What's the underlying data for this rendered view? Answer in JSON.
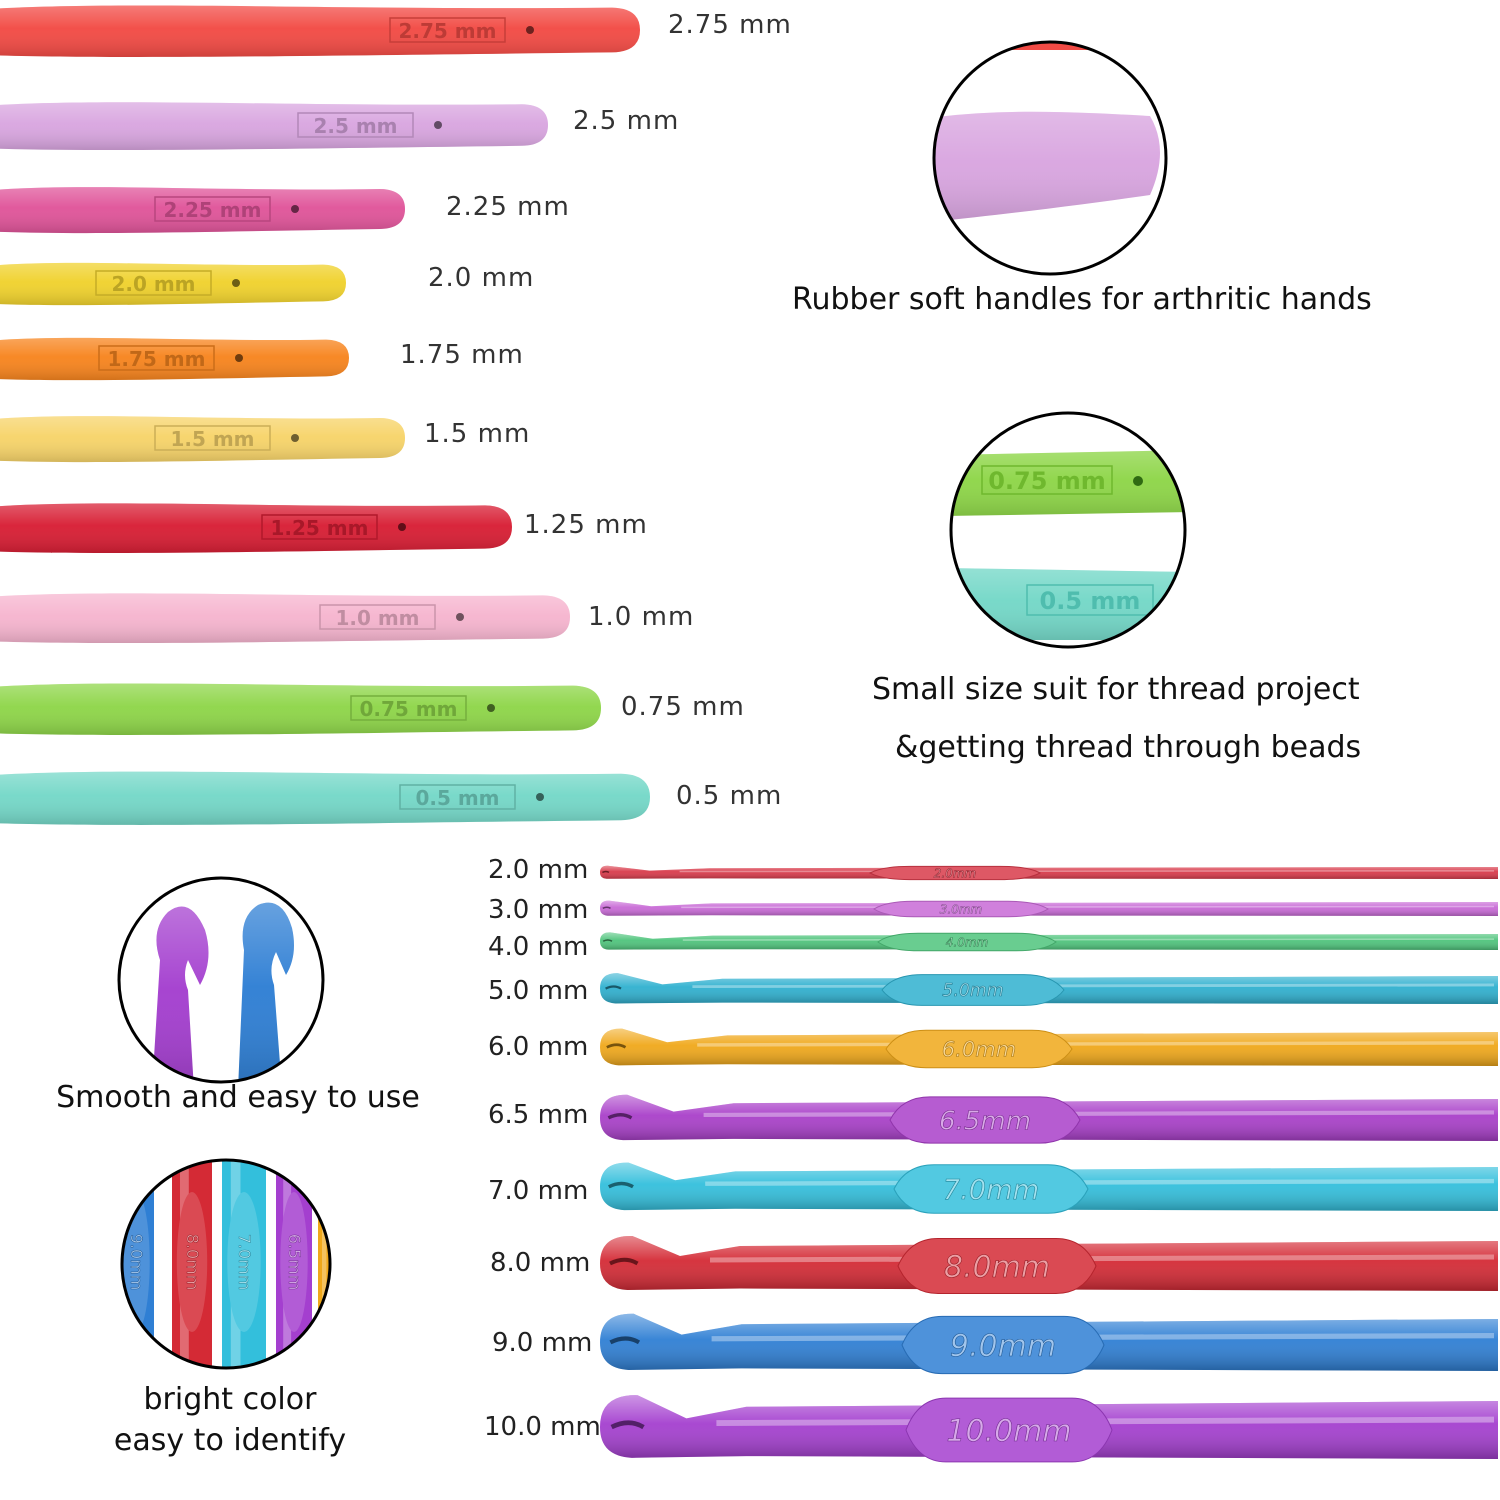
{
  "rubber_hooks": [
    {
      "size": "2.75 mm",
      "label": "2.75 mm",
      "color": "#f24b45"
    },
    {
      "size": "2.5 mm",
      "label": "2.5 mm",
      "color": "#d9a6e0"
    },
    {
      "size": "2.25 mm",
      "label": "2.25 mm",
      "color": "#e0559a"
    },
    {
      "size": "2.0 mm",
      "label": "2.0 mm",
      "color": "#f0d22e"
    },
    {
      "size": "1.75 mm",
      "label": "1.75 mm",
      "color": "#f7851f"
    },
    {
      "size": "1.5 mm",
      "label": "1.5 mm",
      "color": "#f7d46a"
    },
    {
      "size": "1.25 mm",
      "label": "1.25 mm",
      "color": "#d81f35"
    },
    {
      "size": "1.0 mm",
      "label": "1.0 mm",
      "color": "#f6b5cf"
    },
    {
      "size": "0.75 mm",
      "label": "0.75 mm",
      "color": "#8fd64a"
    },
    {
      "size": "0.5 mm",
      "label": "0.5 mm",
      "color": "#75d8c8"
    }
  ],
  "aluminum_hooks": [
    {
      "size": "2.0mm",
      "label": "2.0 mm",
      "color": "#d83a4a"
    },
    {
      "size": "3.0mm",
      "label": "3.0 mm",
      "color": "#c86ad6"
    },
    {
      "size": "4.0mm",
      "label": "4.0 mm",
      "color": "#4fc47c"
    },
    {
      "size": "5.0mm",
      "label": "5.0 mm",
      "color": "#2fb0cf"
    },
    {
      "size": "6.0mm",
      "label": "6.0 mm",
      "color": "#f0a81a"
    },
    {
      "size": "6.5mm",
      "label": "6.5 mm",
      "color": "#a93fc9"
    },
    {
      "size": "7.0mm",
      "label": "7.0 mm",
      "color": "#33bfdc"
    },
    {
      "size": "8.0mm",
      "label": "8.0 mm",
      "color": "#d42a35"
    },
    {
      "size": "9.0mm",
      "label": "9.0 mm",
      "color": "#2f7fd4"
    },
    {
      "size": "10.0mm",
      "label": "10.0 mm",
      "color": "#a43fcf"
    }
  ],
  "features": {
    "rubber_handles": "Rubber soft handles for arthritic hands",
    "small_size_line1": "Small size suit for thread project",
    "small_size_line2": "&getting thread through beads",
    "smooth": "Smooth and easy to use",
    "bright_line1": "bright color",
    "bright_line2": "easy to identify"
  },
  "inset_zoom_labels": {
    "green": "0.75 mm",
    "teal": "0.5 mm",
    "bright": [
      "9.0mm",
      "8.0mm",
      "7.0mm",
      "6.5mm"
    ]
  }
}
